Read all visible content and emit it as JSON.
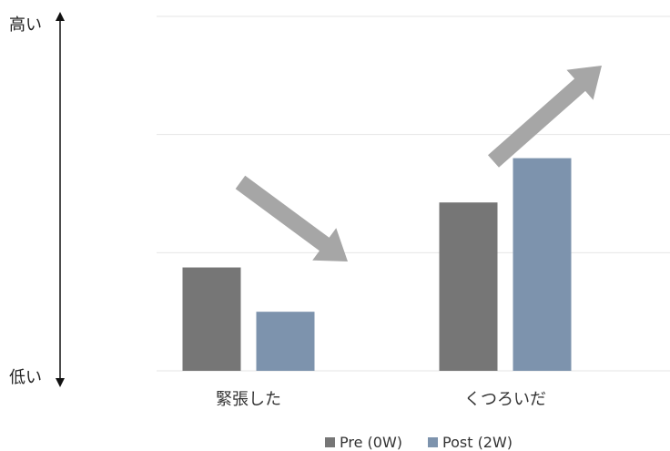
{
  "chart_data": {
    "type": "bar",
    "categories": [
      "緊張した",
      "くつろいだ"
    ],
    "series": [
      {
        "name": "Pre (0W)",
        "values": [
          1.75,
          2.85
        ],
        "color": "#767676"
      },
      {
        "name": "Post (2W)",
        "values": [
          1.0,
          3.6
        ],
        "color": "#7d93ad"
      }
    ],
    "ylim": [
      0,
      6
    ],
    "grid": true,
    "legend": "bottom",
    "title": "",
    "xlabel": "",
    "ylabel": "",
    "y_axis_top_label": "高い",
    "y_axis_bottom_label": "低い",
    "trend_arrows": [
      "down",
      "up"
    ],
    "arrow_color": "#a6a6a6"
  }
}
